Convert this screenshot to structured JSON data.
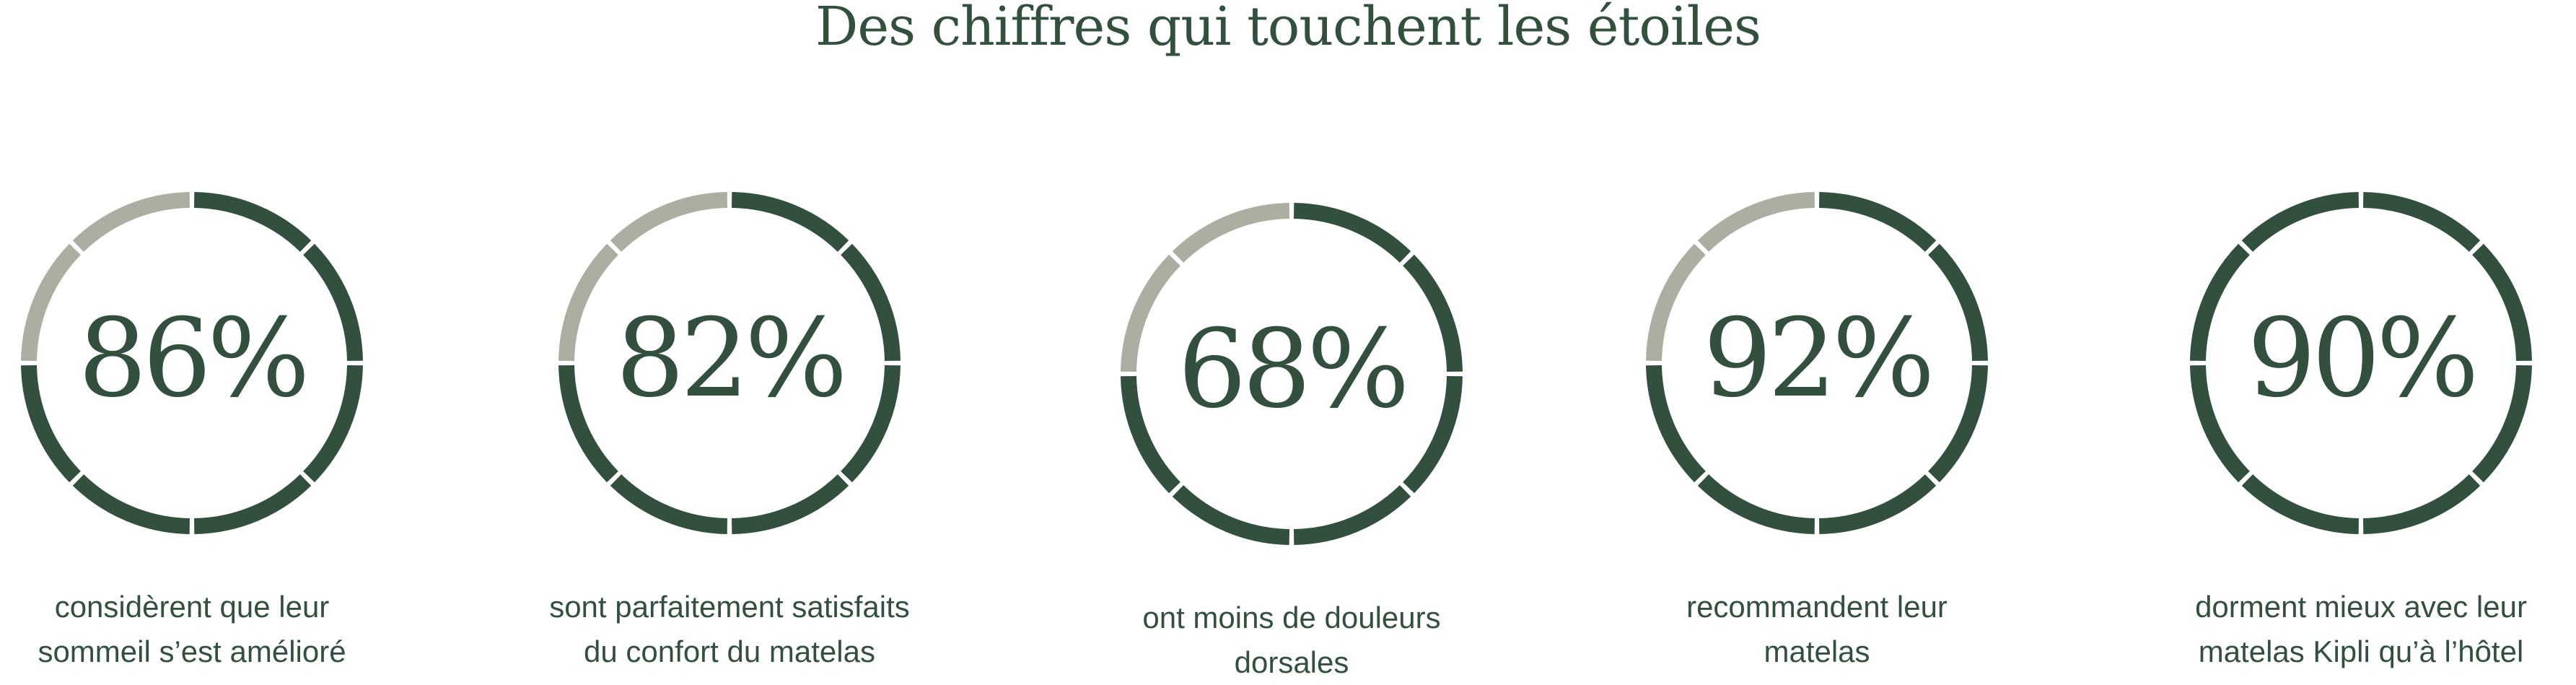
{
  "title": "Des chiffres qui touchent les étoiles",
  "colors": {
    "filled": "#33503f",
    "unfilled": "#abafa2",
    "text": "#33503f"
  },
  "stats": [
    {
      "value": "86%",
      "caption_line1": "considèrent que leur",
      "caption_line2": "sommeil s’est amélioré",
      "segments_total": 8,
      "segments_filled": 6
    },
    {
      "value": "82%",
      "caption_line1": "sont parfaitement satisfaits",
      "caption_line2": "du confort du matelas",
      "segments_total": 8,
      "segments_filled": 6
    },
    {
      "value": "68%",
      "caption_line1": "ont moins de douleurs",
      "caption_line2": "dorsales",
      "segments_total": 8,
      "segments_filled": 6
    },
    {
      "value": "92%",
      "caption_line1": "recommandent leur",
      "caption_line2": "matelas",
      "segments_total": 8,
      "segments_filled": 6
    },
    {
      "value": "90%",
      "caption_line1": "dorment mieux avec leur",
      "caption_line2": "matelas Kipli qu’à l’hôtel",
      "segments_total": 8,
      "segments_filled": 8
    }
  ]
}
